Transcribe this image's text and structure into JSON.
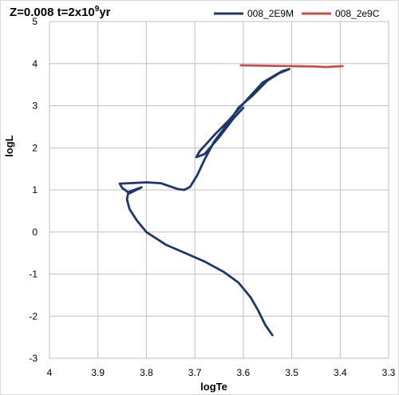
{
  "chart_data": {
    "type": "line",
    "title_prefix": "Z=0.008 t=2x10",
    "title_exponent": "9",
    "title_suffix": "yr",
    "xlabel": "logTe",
    "ylabel": "logL",
    "xlim": [
      4.0,
      3.3
    ],
    "ylim": [
      -3,
      5
    ],
    "x_reversed": true,
    "xticks": [
      "4",
      "3.9",
      "3.8",
      "3.7",
      "3.6",
      "3.5",
      "3.4",
      "3.3"
    ],
    "yticks": [
      "5",
      "4",
      "3",
      "2",
      "1",
      "0",
      "-1",
      "-2",
      "-3"
    ],
    "grid": true,
    "legend_position": "top-right",
    "series": [
      {
        "name": "008_2E9M",
        "color": "#1f3767",
        "points": [
          [
            3.54,
            -2.45
          ],
          [
            3.555,
            -2.2
          ],
          [
            3.57,
            -1.85
          ],
          [
            3.585,
            -1.55
          ],
          [
            3.61,
            -1.2
          ],
          [
            3.64,
            -0.95
          ],
          [
            3.68,
            -0.7
          ],
          [
            3.72,
            -0.5
          ],
          [
            3.76,
            -0.3
          ],
          [
            3.8,
            0.0
          ],
          [
            3.82,
            0.28
          ],
          [
            3.835,
            0.55
          ],
          [
            3.84,
            0.78
          ],
          [
            3.837,
            0.95
          ],
          [
            3.818,
            1.03
          ],
          [
            3.81,
            1.06
          ],
          [
            3.835,
            0.92
          ],
          [
            3.85,
            1.05
          ],
          [
            3.855,
            1.15
          ],
          [
            3.835,
            1.16
          ],
          [
            3.8,
            1.18
          ],
          [
            3.77,
            1.16
          ],
          [
            3.75,
            1.08
          ],
          [
            3.735,
            1.02
          ],
          [
            3.722,
            1.0
          ],
          [
            3.71,
            1.07
          ],
          [
            3.695,
            1.35
          ],
          [
            3.68,
            1.72
          ],
          [
            3.66,
            2.15
          ],
          [
            3.63,
            2.6
          ],
          [
            3.61,
            2.95
          ],
          [
            3.58,
            3.25
          ],
          [
            3.55,
            3.6
          ],
          [
            3.525,
            3.78
          ],
          [
            3.505,
            3.87
          ],
          [
            3.52,
            3.82
          ],
          [
            3.56,
            3.55
          ],
          [
            3.6,
            3.05
          ],
          [
            3.63,
            2.65
          ],
          [
            3.66,
            2.3
          ],
          [
            3.69,
            1.92
          ],
          [
            3.697,
            1.78
          ],
          [
            3.68,
            1.85
          ],
          [
            3.65,
            2.25
          ],
          [
            3.62,
            2.7
          ],
          [
            3.6,
            2.95
          ]
        ]
      },
      {
        "name": "008_2e9C",
        "color": "#c0504d",
        "points": [
          [
            3.605,
            3.96
          ],
          [
            3.55,
            3.95
          ],
          [
            3.5,
            3.94
          ],
          [
            3.45,
            3.93
          ],
          [
            3.43,
            3.92
          ],
          [
            3.41,
            3.93
          ],
          [
            3.395,
            3.94
          ]
        ]
      }
    ]
  }
}
